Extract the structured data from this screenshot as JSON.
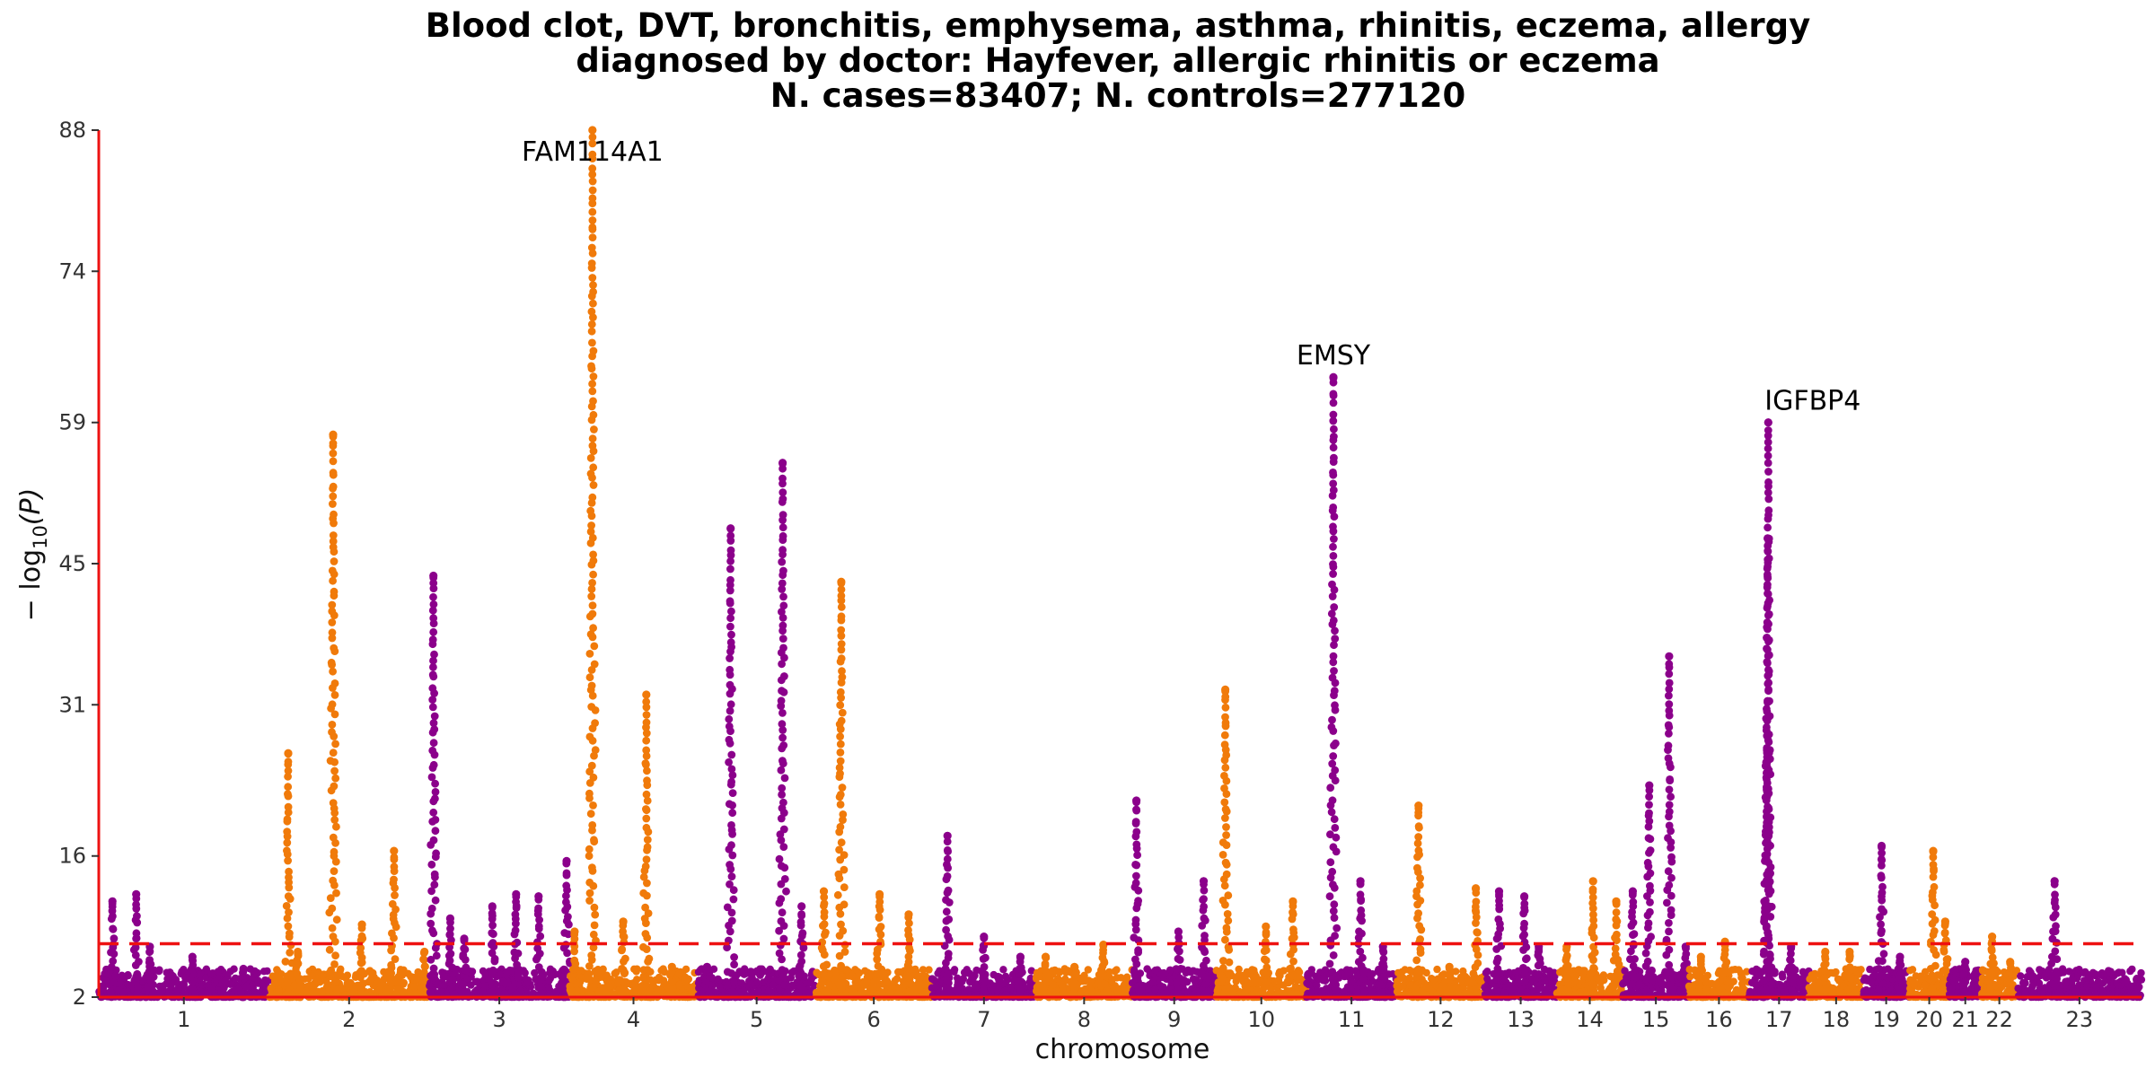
{
  "chart_data": {
    "type": "scatter",
    "subtype": "manhattan",
    "title_lines": [
      "Blood clot, DVT, bronchitis, emphysema, asthma, rhinitis, eczema, allergy",
      "diagnosed by doctor: Hayfever, allergic rhinitis or eczema",
      "N. cases=83407; N. controls=277120"
    ],
    "xlabel": "chromosome",
    "ylabel_base": "− log",
    "ylabel_sub": "10",
    "ylabel_tail": "(P)",
    "ylim": [
      2,
      88
    ],
    "yticks": [
      2,
      16,
      31,
      45,
      59,
      74,
      88
    ],
    "threshold": 7.3,
    "colors": {
      "odd": "#8b008b",
      "even": "#f07a0a",
      "threshold": "#ee1111",
      "axis": "#ee1111"
    },
    "chromosomes": [
      {
        "label": "1",
        "peaks": [
          [
            0.08,
            11.5
          ],
          [
            0.22,
            12.2
          ],
          [
            0.3,
            7.0
          ],
          [
            0.55,
            6.0
          ],
          [
            0.85,
            4.8
          ]
        ]
      },
      {
        "label": "2",
        "peaks": [
          [
            0.05,
            4.0
          ],
          [
            0.12,
            26.2
          ],
          [
            0.18,
            6.5
          ],
          [
            0.4,
            57.8
          ],
          [
            0.58,
            9.2
          ],
          [
            0.78,
            16.5
          ],
          [
            0.97,
            6.5
          ]
        ]
      },
      {
        "label": "3",
        "peaks": [
          [
            0.03,
            43.8
          ],
          [
            0.15,
            9.8
          ],
          [
            0.25,
            7.8
          ],
          [
            0.45,
            11.0
          ],
          [
            0.62,
            12.2
          ],
          [
            0.78,
            12.0
          ],
          [
            0.98,
            15.5
          ]
        ]
      },
      {
        "label": "4",
        "peaks": [
          [
            0.04,
            8.5
          ],
          [
            0.18,
            88.0
          ],
          [
            0.42,
            9.5
          ],
          [
            0.6,
            32.0
          ],
          [
            0.8,
            5.0
          ]
        ]
      },
      {
        "label": "5",
        "peaks": [
          [
            0.08,
            5.0
          ],
          [
            0.28,
            48.5
          ],
          [
            0.72,
            55.0
          ],
          [
            0.88,
            11.0
          ]
        ]
      },
      {
        "label": "6",
        "peaks": [
          [
            0.07,
            12.5
          ],
          [
            0.22,
            43.2
          ],
          [
            0.55,
            12.2
          ],
          [
            0.8,
            10.2
          ]
        ]
      },
      {
        "label": "7",
        "peaks": [
          [
            0.15,
            18.0
          ],
          [
            0.5,
            8.0
          ],
          [
            0.85,
            6.0
          ]
        ]
      },
      {
        "label": "8",
        "peaks": [
          [
            0.1,
            6.0
          ],
          [
            0.4,
            5.0
          ],
          [
            0.7,
            7.2
          ]
        ]
      },
      {
        "label": "9",
        "peaks": [
          [
            0.05,
            21.5
          ],
          [
            0.55,
            8.5
          ],
          [
            0.85,
            13.5
          ]
        ]
      },
      {
        "label": "10",
        "peaks": [
          [
            0.1,
            32.5
          ],
          [
            0.55,
            9.0
          ],
          [
            0.85,
            11.5
          ]
        ]
      },
      {
        "label": "11",
        "peaks": [
          [
            0.3,
            63.5
          ],
          [
            0.6,
            13.5
          ],
          [
            0.85,
            7.0
          ]
        ]
      },
      {
        "label": "12",
        "peaks": [
          [
            0.25,
            21.0
          ],
          [
            0.6,
            5.0
          ],
          [
            0.9,
            12.8
          ]
        ]
      },
      {
        "label": "13",
        "peaks": [
          [
            0.2,
            12.5
          ],
          [
            0.55,
            12.0
          ],
          [
            0.75,
            7.0
          ]
        ]
      },
      {
        "label": "14",
        "peaks": [
          [
            0.15,
            7.0
          ],
          [
            0.55,
            13.5
          ],
          [
            0.9,
            11.5
          ]
        ]
      },
      {
        "label": "15",
        "peaks": [
          [
            0.15,
            12.5
          ],
          [
            0.4,
            23.0
          ],
          [
            0.7,
            35.8
          ],
          [
            0.95,
            7.0
          ]
        ]
      },
      {
        "label": "16",
        "peaks": [
          [
            0.2,
            6.0
          ],
          [
            0.6,
            7.5
          ]
        ]
      },
      {
        "label": "17",
        "peaks": [
          [
            0.3,
            26.5
          ],
          [
            0.31,
            47.5
          ],
          [
            0.32,
            59.0
          ],
          [
            0.7,
            7.0
          ]
        ]
      },
      {
        "label": "18",
        "peaks": [
          [
            0.3,
            6.5
          ],
          [
            0.75,
            6.5
          ]
        ]
      },
      {
        "label": "19",
        "peaks": [
          [
            0.4,
            17.0
          ],
          [
            0.8,
            6.0
          ]
        ]
      },
      {
        "label": "20",
        "peaks": [
          [
            0.6,
            16.5
          ],
          [
            0.9,
            9.5
          ]
        ]
      },
      {
        "label": "21",
        "peaks": [
          [
            0.5,
            5.5
          ]
        ]
      },
      {
        "label": "22",
        "peaks": [
          [
            0.3,
            8.0
          ],
          [
            0.8,
            5.5
          ]
        ]
      },
      {
        "label": "23",
        "peaks": [
          [
            0.3,
            13.5
          ],
          [
            0.75,
            4.5
          ]
        ]
      }
    ],
    "annotations": [
      {
        "text": "FAM114A1",
        "chrom": "4",
        "value": 88.0
      },
      {
        "text": "EMSY",
        "chrom": "11",
        "value": 63.5
      },
      {
        "text": "IGFBP4",
        "chrom": "17",
        "value": 59.0
      }
    ]
  }
}
